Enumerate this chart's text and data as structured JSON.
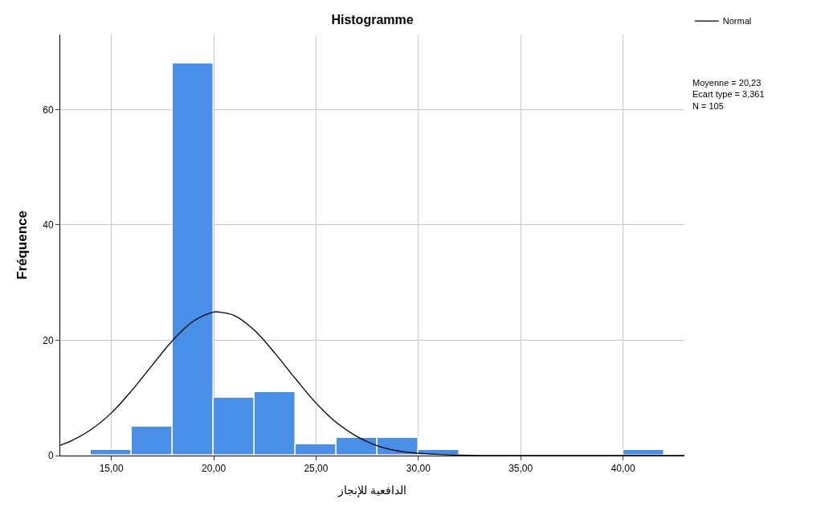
{
  "chart_data": {
    "type": "histogram",
    "title": "Histogramme",
    "xlabel": "الدافعية للإنجاز",
    "ylabel": "Fréquence",
    "bins": [
      14,
      16,
      18,
      20,
      22,
      24,
      26,
      28,
      30,
      32,
      34,
      36,
      38,
      40,
      42
    ],
    "values": [
      1,
      5,
      68,
      10,
      11,
      2,
      3,
      3,
      1,
      0,
      0,
      0,
      0,
      1
    ],
    "color": "#4a8fe7",
    "series": [
      {
        "name": "Normal",
        "type": "line",
        "color": "#000000",
        "x": [
          12.5,
          13,
          14,
          15,
          16,
          17,
          18,
          19,
          20,
          20.23,
          21,
          22,
          23,
          24,
          25,
          26,
          27,
          28,
          29,
          30,
          32,
          35,
          43
        ],
        "values": [
          1.8,
          2.5,
          4.5,
          7.4,
          11.3,
          15.7,
          20.0,
          23.3,
          24.9,
          24.9,
          24.3,
          21.7,
          17.7,
          13.3,
          9.1,
          5.7,
          3.3,
          1.7,
          0.8,
          0.4,
          0.1,
          0,
          0
        ]
      }
    ],
    "annotations": [
      "Moyenne = 20,23\nEcart type = 3,361\nN = 105"
    ],
    "xlim": [
      12.5,
      43
    ],
    "ylim": [
      0,
      73
    ],
    "xticks": [
      {
        "value": 15,
        "label": "15,00"
      },
      {
        "value": 20,
        "label": "20,00"
      },
      {
        "value": 25,
        "label": "25,00"
      },
      {
        "value": 30,
        "label": "30,00"
      },
      {
        "value": 35,
        "label": "35,00"
      },
      {
        "value": 40,
        "label": "40,00"
      }
    ],
    "yticks": [
      0,
      20,
      40,
      60
    ],
    "grid": true,
    "legend": "top right",
    "marker": "none",
    "line_style": "solid"
  }
}
